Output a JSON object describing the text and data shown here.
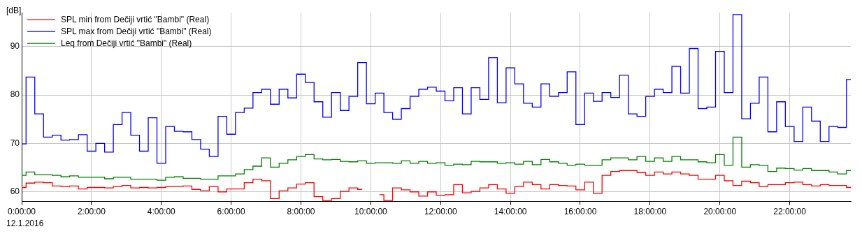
{
  "chart_data": {
    "type": "step",
    "ylabel": "[dB]",
    "legend": "top left",
    "grid": true,
    "line_style": "solid",
    "annotations": [
      "12.1.2016"
    ],
    "xlim": [
      0,
      23.75
    ],
    "ylim": [
      58,
      97
    ],
    "yticks": [
      60,
      70,
      80,
      90
    ],
    "xticks": [
      {
        "value": 0,
        "label": "0:00:00"
      },
      {
        "value": 2,
        "label": "2:00:00"
      },
      {
        "value": 4,
        "label": "4:00:00"
      },
      {
        "value": 6,
        "label": "6:00:00"
      },
      {
        "value": 8,
        "label": "8:00:00"
      },
      {
        "value": 10,
        "label": "10:00:00"
      },
      {
        "value": 12,
        "label": "12:00:00"
      },
      {
        "value": 14,
        "label": "14:00:00"
      },
      {
        "value": 16,
        "label": "16:00:00"
      },
      {
        "value": 18,
        "label": "18:00:00"
      },
      {
        "value": 20,
        "label": "20:00:00"
      },
      {
        "value": 22,
        "label": "22:00:00"
      }
    ],
    "x": [
      0,
      0.25,
      0.5,
      0.75,
      1,
      1.25,
      1.5,
      1.75,
      2,
      2.25,
      2.5,
      2.75,
      3,
      3.25,
      3.5,
      3.75,
      4,
      4.25,
      4.5,
      4.75,
      5,
      5.25,
      5.5,
      5.75,
      6,
      6.25,
      6.5,
      6.75,
      7,
      7.25,
      7.5,
      7.75,
      8,
      8.25,
      8.5,
      8.75,
      9,
      9.25,
      9.5,
      9.75,
      10,
      10.25,
      10.5,
      10.75,
      11,
      11.25,
      11.5,
      11.75,
      12,
      12.25,
      12.5,
      12.75,
      13,
      13.25,
      13.5,
      13.75,
      14,
      14.25,
      14.5,
      14.75,
      15,
      15.25,
      15.5,
      15.75,
      16,
      16.25,
      16.5,
      16.75,
      17,
      17.25,
      17.5,
      17.75,
      18,
      18.25,
      18.5,
      18.75,
      19,
      19.25,
      19.5,
      19.75,
      20,
      20.25,
      20.5,
      20.75,
      21,
      21.25,
      21.5,
      21.75,
      22,
      22.25,
      22.5,
      22.75,
      23,
      23.25,
      23.5,
      23.75
    ],
    "series": [
      {
        "name": "SPL min from Dečiji vrtić \"Bambi\" (Real)",
        "color": "#ff0000",
        "values": [
          60.9,
          61.8,
          62.0,
          61.9,
          61.2,
          61.1,
          61.2,
          60.6,
          60.9,
          60.9,
          60.8,
          61.1,
          61.3,
          60.8,
          60.9,
          60.8,
          60.9,
          61.1,
          61.1,
          61.2,
          60.5,
          60.2,
          61.1,
          60.0,
          60.6,
          60.6,
          61.9,
          62.6,
          62.3,
          58.6,
          60.2,
          60.8,
          61.6,
          61.9,
          59.0,
          58.2,
          58.6,
          60.1,
          60.8,
          60.5,
          null,
          59.4,
          58.2,
          60.8,
          60.4,
          60.0,
          59.1,
          60.0,
          59.3,
          59.4,
          61.5,
          59.8,
          60.1,
          60.8,
          61.5,
          60.6,
          59.7,
          61.1,
          62.0,
          61.5,
          60.6,
          61.5,
          61.3,
          61.2,
          60.4,
          62.0,
          59.7,
          63.4,
          64.2,
          64.4,
          64.4,
          64.0,
          63.4,
          64.1,
          63.7,
          64.1,
          63.7,
          63.4,
          62.6,
          62.6,
          63.4,
          62.3,
          61.3,
          62.2,
          61.9,
          61.1,
          61.5,
          61.5,
          61.9,
          62.0,
          61.5,
          61.2,
          61.5,
          61.3,
          61.3,
          60.9
        ]
      },
      {
        "name": "SPL max from Dečiji vrtić \"Bambi\" (Real)",
        "color": "#0000ff",
        "values": [
          69.9,
          83.7,
          76.1,
          71.3,
          71.7,
          70.7,
          70.8,
          71.8,
          68.4,
          70.0,
          68.2,
          73.9,
          76.4,
          71.7,
          68.4,
          75.3,
          65.9,
          73.5,
          72.5,
          72.4,
          70.8,
          68.8,
          67.3,
          75.6,
          71.9,
          76.4,
          77.3,
          80.5,
          81.2,
          78.1,
          81.2,
          79.4,
          84.3,
          82.6,
          78.6,
          75.4,
          80.5,
          76.8,
          79.7,
          86.7,
          78.2,
          80.4,
          76.4,
          75.0,
          77.2,
          79.7,
          81.2,
          81.6,
          80.8,
          78.8,
          81.5,
          76.1,
          81.5,
          79.1,
          87.7,
          78.4,
          85.6,
          82.3,
          78.3,
          77.5,
          82.3,
          79.7,
          80.5,
          84.8,
          73.9,
          80.4,
          78.7,
          80.5,
          79.5,
          84.1,
          76.1,
          75.6,
          79.7,
          81.2,
          80.5,
          85.9,
          80.4,
          89.6,
          77.2,
          77.5,
          89.0,
          80.5,
          96.6,
          75.1,
          78.3,
          83.7,
          72.4,
          78.6,
          73.5,
          70.4,
          77.5,
          74.6,
          70.4,
          73.5,
          73.3,
          83.2
        ]
      },
      {
        "name": "Leq from Dečiji vrtić \"Bambi\" (Real)",
        "color": "#008000",
        "values": [
          63.4,
          64.1,
          63.5,
          63.5,
          63.4,
          63.1,
          63.3,
          63.0,
          63.0,
          63.0,
          62.7,
          63.0,
          63.0,
          62.6,
          62.6,
          62.6,
          62.4,
          63.0,
          63.1,
          62.8,
          62.8,
          62.6,
          62.6,
          63.3,
          63.3,
          63.7,
          64.6,
          65.3,
          67.0,
          65.1,
          65.9,
          66.6,
          67.3,
          67.7,
          66.8,
          66.6,
          66.7,
          66.3,
          66.2,
          66.4,
          65.9,
          66.0,
          66.0,
          65.9,
          66.4,
          65.9,
          66.3,
          65.9,
          66.0,
          65.5,
          65.7,
          65.6,
          66.3,
          66.2,
          66.2,
          65.9,
          66.0,
          65.7,
          66.3,
          65.6,
          66.7,
          66.2,
          65.9,
          65.5,
          65.7,
          65.5,
          65.5,
          66.6,
          67.0,
          67.0,
          66.6,
          67.3,
          66.3,
          67.0,
          66.3,
          67.3,
          66.6,
          66.6,
          66.2,
          66.0,
          67.7,
          65.5,
          71.3,
          65.1,
          65.6,
          65.5,
          64.2,
          64.9,
          64.8,
          64.5,
          64.8,
          64.4,
          64.4,
          64.1,
          63.7,
          64.4
        ]
      }
    ]
  }
}
